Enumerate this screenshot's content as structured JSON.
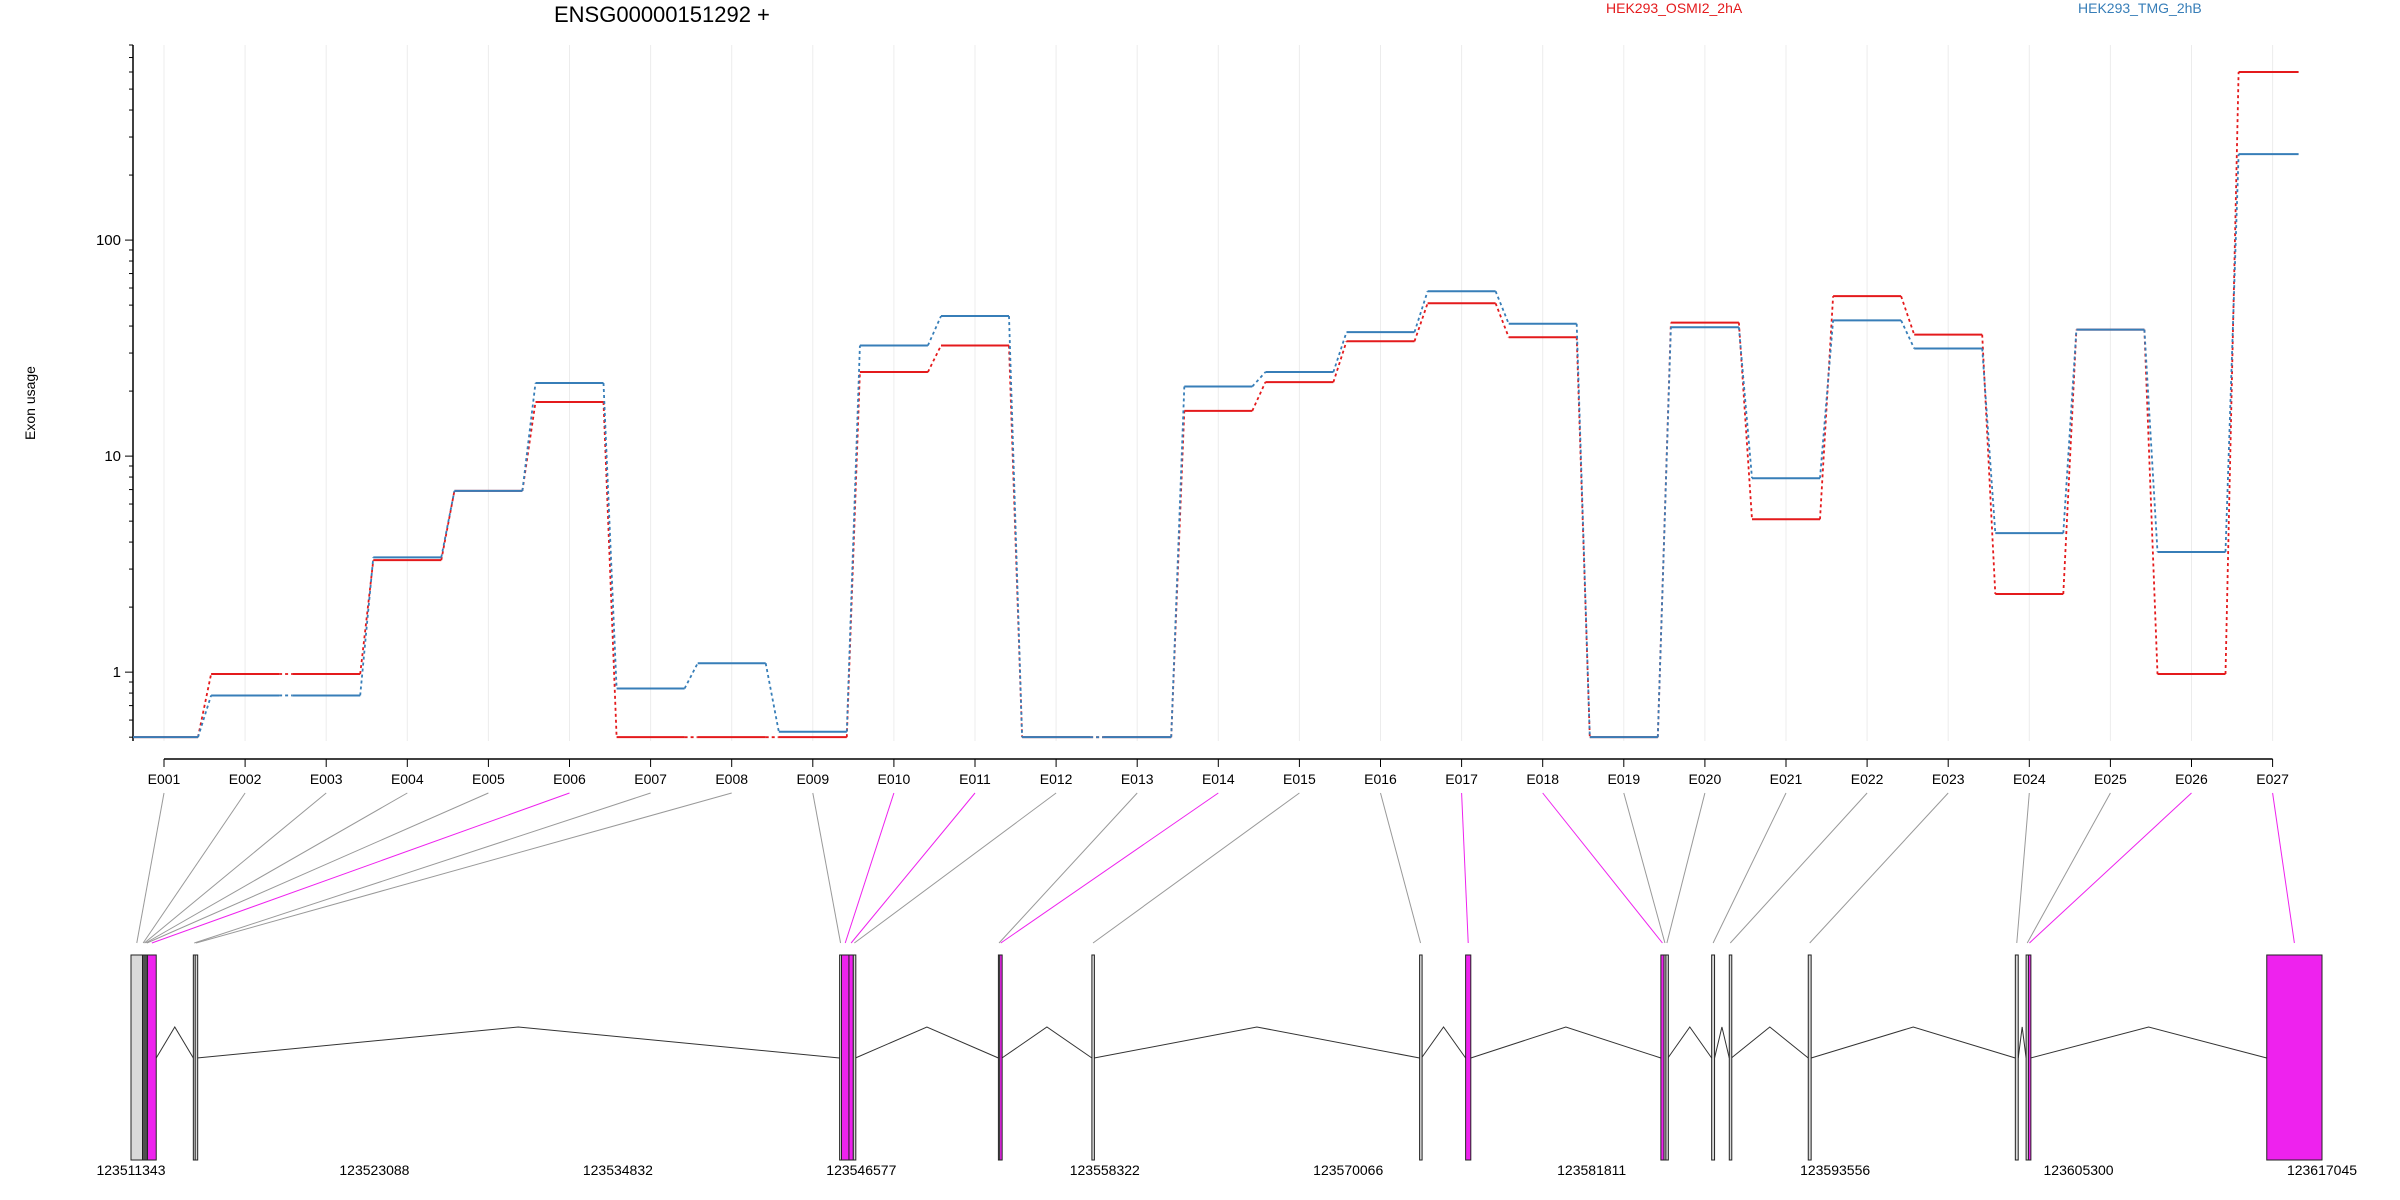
{
  "colors": {
    "series_a": "#e41a1c",
    "series_b": "#377eb8",
    "highlight": "#ee22ee",
    "exon_fill": "#d9d9d9",
    "connector": "#999999"
  },
  "chart_data": {
    "type": "line",
    "title": "ENSG00000151292 +",
    "ylabel": "Exon usage",
    "yscale": "log",
    "ylim": [
      0.48,
      800
    ],
    "yticks": [
      1,
      10,
      100
    ],
    "ytick_labels": [
      "1",
      "10",
      "100"
    ],
    "grid": "vertical",
    "legend_placement": "top-right",
    "categories": [
      "E001",
      "E002",
      "E003",
      "E004",
      "E005",
      "E006",
      "E007",
      "E008",
      "E009",
      "E010",
      "E011",
      "E012",
      "E013",
      "E014",
      "E015",
      "E016",
      "E017",
      "E018",
      "E019",
      "E020",
      "E021",
      "E022",
      "E023",
      "E024",
      "E025",
      "E026",
      "E027"
    ],
    "series": [
      {
        "name": "HEK293_OSMI2_2hA",
        "values": [
          0.5,
          0.98,
          0.98,
          3.3,
          6.9,
          17.8,
          0.5,
          0.5,
          0.5,
          24.5,
          32.5,
          0.5,
          0.5,
          16.2,
          22.0,
          34.0,
          51.0,
          35.5,
          0.5,
          41.5,
          5.1,
          55.0,
          36.5,
          2.3,
          38.5,
          0.98,
          600
        ]
      },
      {
        "name": "HEK293_TMG_2hB",
        "values": [
          0.5,
          0.78,
          0.78,
          3.4,
          6.9,
          21.8,
          0.84,
          1.1,
          0.53,
          32.5,
          44.5,
          0.5,
          0.5,
          21.0,
          24.5,
          37.5,
          58.0,
          41.0,
          0.5,
          39.5,
          7.9,
          42.5,
          31.5,
          4.4,
          38.5,
          3.6,
          250
        ]
      }
    ],
    "highlighted_exons": [
      "E006",
      "E010",
      "E011",
      "E014",
      "E017",
      "E018",
      "E026",
      "E027"
    ],
    "coordinate_ticks": [
      "123511343",
      "123523088",
      "123534832",
      "123546577",
      "123558322",
      "123570066",
      "123581811",
      "123593556",
      "123605300",
      "123617045"
    ],
    "gene_model": {
      "start": 123511343,
      "end": 123617045,
      "exons": [
        {
          "id": "E001",
          "start": 123511343,
          "end": 123511900
        },
        {
          "id": "E002",
          "start": 123511900,
          "end": 123511960
        },
        {
          "id": "E003",
          "start": 123511960,
          "end": 123512020
        },
        {
          "id": "E004",
          "start": 123512020,
          "end": 123512080
        },
        {
          "id": "E005",
          "start": 123512080,
          "end": 123512140
        },
        {
          "id": "E006",
          "start": 123512140,
          "end": 123512560
        },
        {
          "id": "E007",
          "start": 123514350,
          "end": 123514440
        },
        {
          "id": "E008",
          "start": 123514440,
          "end": 123514520
        },
        {
          "id": "E009",
          "start": 123545530,
          "end": 123545620
        },
        {
          "id": "E010",
          "start": 123545620,
          "end": 123545980
        },
        {
          "id": "E011",
          "start": 123545980,
          "end": 123546190
        },
        {
          "id": "E012",
          "start": 123546190,
          "end": 123546290
        },
        {
          "id": "E013",
          "start": 123553190,
          "end": 123553250
        },
        {
          "id": "E014",
          "start": 123553250,
          "end": 123553360
        },
        {
          "id": "E015",
          "start": 123557700,
          "end": 123557810
        },
        {
          "id": "E016",
          "start": 123573510,
          "end": 123573600
        },
        {
          "id": "E017",
          "start": 123575730,
          "end": 123575980
        },
        {
          "id": "E018",
          "start": 123585150,
          "end": 123585300
        },
        {
          "id": "E019",
          "start": 123585300,
          "end": 123585390
        },
        {
          "id": "E020",
          "start": 123585390,
          "end": 123585490
        },
        {
          "id": "E021",
          "start": 123587600,
          "end": 123587740
        },
        {
          "id": "E022",
          "start": 123588450,
          "end": 123588550
        },
        {
          "id": "E023",
          "start": 123592260,
          "end": 123592400
        },
        {
          "id": "E024",
          "start": 123602250,
          "end": 123602390
        },
        {
          "id": "E025",
          "start": 123602770,
          "end": 123602880
        },
        {
          "id": "E026",
          "start": 123602880,
          "end": 123602980
        },
        {
          "id": "E027",
          "start": 123614380,
          "end": 123617045
        }
      ]
    }
  }
}
